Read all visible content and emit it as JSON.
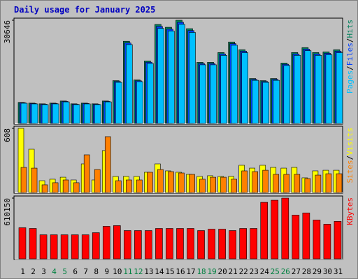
{
  "chart_data": {
    "type": "bar",
    "title": "Daily usage for January 2025",
    "categories": [
      "1",
      "2",
      "3",
      "4",
      "5",
      "6",
      "7",
      "8",
      "9",
      "10",
      "11",
      "12",
      "13",
      "14",
      "15",
      "16",
      "17",
      "18",
      "19",
      "20",
      "21",
      "22",
      "23",
      "24",
      "25",
      "26",
      "27",
      "28",
      "29",
      "30",
      "31"
    ],
    "category_colors": [
      "#000000",
      "#000000",
      "#000000",
      "#008040",
      "#008040",
      "#000000",
      "#000000",
      "#000000",
      "#000000",
      "#000000",
      "#008040",
      "#008040",
      "#000000",
      "#000000",
      "#000000",
      "#000000",
      "#000000",
      "#008040",
      "#008040",
      "#000000",
      "#000000",
      "#000000",
      "#000000",
      "#000000",
      "#008040",
      "#008040",
      "#000000",
      "#000000",
      "#000000",
      "#000000",
      "#000000"
    ],
    "legend_separator": "/",
    "panels": [
      {
        "ylim": [
          0,
          30646
        ],
        "yticks": [
          30646
        ],
        "series": [
          {
            "name": "Hits",
            "color": "#00805c",
            "values": [
              6254,
              6046,
              5837,
              6046,
              6671,
              5837,
              6046,
              5837,
              6671,
              12717,
              24392,
              12926,
              18555,
              29396,
              28562,
              30646,
              28145,
              18138,
              18138,
              21056,
              24183,
              21890,
              13343,
              12717,
              13343,
              17929,
              21056,
              22516,
              21056,
              21265,
              21890
            ]
          },
          {
            "name": "Files",
            "color": "#0040ff",
            "values": [
              6129,
              5925,
              5720,
              5925,
              6538,
              5720,
              5925,
              5720,
              6538,
              12463,
              23904,
              12667,
              18184,
              28808,
              27991,
              30033,
              27582,
              17775,
              17775,
              20635,
              23699,
              21452,
              13076,
              12463,
              13076,
              17570,
              20635,
              22066,
              20635,
              20840,
              21452
            ]
          },
          {
            "name": "Pages",
            "color": "#00c0ff",
            "values": [
              6004,
              5804,
              5604,
              5804,
              6404,
              5604,
              5804,
              5604,
              6404,
              12208,
              23416,
              12409,
              17813,
              28220,
              27420,
              29420,
              27019,
              17412,
              17412,
              20214,
              23216,
              21014,
              12809,
              12208,
              12809,
              17212,
              20214,
              21615,
              20214,
              20414,
              21014
            ]
          }
        ]
      },
      {
        "ylim": [
          0,
          608
        ],
        "yticks": [
          608
        ],
        "series": [
          {
            "name": "Visits",
            "color": "#ffff00",
            "values": [
              608,
              410,
              112,
              126,
              145,
              119,
              271,
              119,
              397,
              152,
              152,
              152,
              192,
              271,
              205,
              192,
              172,
              152,
              159,
              152,
              152,
              258,
              231,
              258,
              238,
              231,
              238,
              139,
              205,
              211,
              211
            ]
          },
          {
            "name": "Sites",
            "color": "#ff8000",
            "values": [
              238,
              231,
              73,
              93,
              119,
              93,
              357,
              218,
              529,
              112,
              119,
              119,
              192,
              218,
              198,
              185,
              172,
              126,
              145,
              145,
              126,
              205,
              198,
              211,
              172,
              172,
              172,
              132,
              165,
              178,
              178
            ]
          }
        ]
      },
      {
        "ylim": [
          0,
          610150
        ],
        "yticks": [
          610150
        ],
        "series": [
          {
            "name": "KBytes",
            "color": "#ff0000",
            "values": [
              312180,
              305085,
              241230,
              241230,
              241230,
              241230,
              241230,
              262515,
              326370,
              333465,
              283800,
              283800,
              283800,
              305085,
              305085,
              305085,
              305085,
              283800,
              297990,
              297990,
              283800,
              305085,
              305085,
              567600,
              588885,
              610150,
              439890,
              461175,
              390225,
              347655,
              376035
            ]
          }
        ]
      }
    ]
  }
}
